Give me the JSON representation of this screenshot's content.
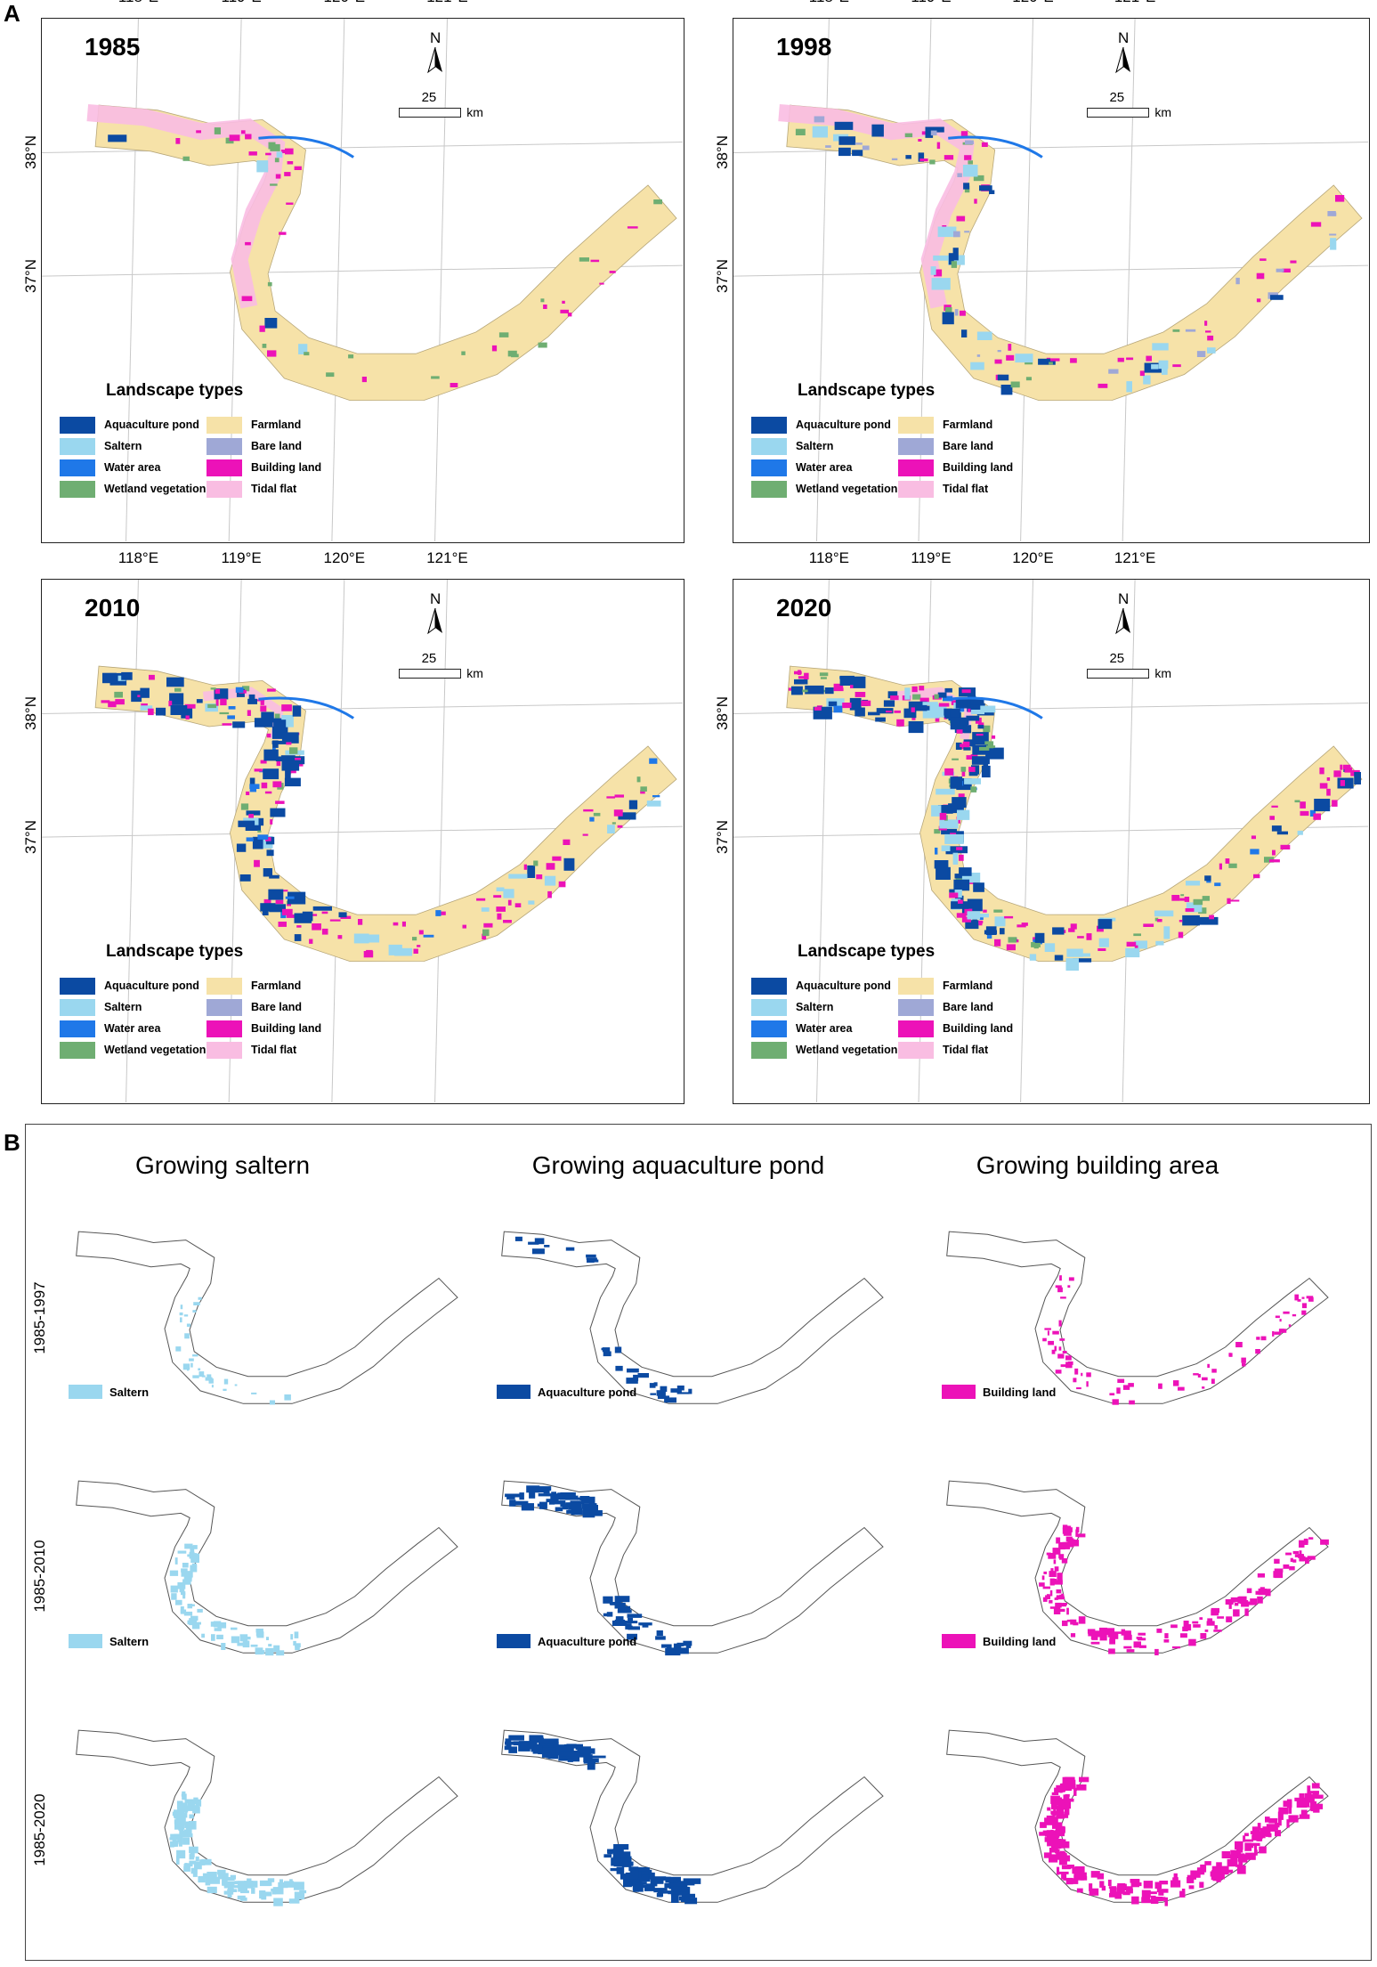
{
  "panel_a_label": "A",
  "panel_b_label": "B",
  "colors": {
    "aquaculture_pond": "#0b4aa2",
    "saltern": "#9ad7ef",
    "water_area": "#1f78e8",
    "wetland_vegetation": "#6fae72",
    "farmland": "#f6e2a8",
    "bare_land": "#9fa8d6",
    "building_land": "#ec12b8",
    "tidal_flat": "#f9bde2"
  },
  "longitude_labels": [
    "118°E",
    "119°E",
    "120°E",
    "121°E"
  ],
  "latitude_labels": [
    "38°N",
    "37°N"
  ],
  "north_label": "N",
  "scale": {
    "value": "25",
    "unit": "km"
  },
  "legend": {
    "title": "Landscape types",
    "items": [
      {
        "label": "Aquaculture pond",
        "color": "#0b4aa2"
      },
      {
        "label": "Saltern",
        "color": "#9ad7ef"
      },
      {
        "label": "Water area",
        "color": "#1f78e8"
      },
      {
        "label": "Wetland vegetation",
        "color": "#6fae72"
      },
      {
        "label": "Farmland",
        "color": "#f6e2a8"
      },
      {
        "label": "Bare land",
        "color": "#9fa8d6"
      },
      {
        "label": "Building land",
        "color": "#ec12b8"
      },
      {
        "label": "Tidal flat",
        "color": "#f9bde2"
      }
    ]
  },
  "maps": [
    {
      "year": "1985"
    },
    {
      "year": "1998"
    },
    {
      "year": "2010"
    },
    {
      "year": "2020"
    }
  ],
  "panel_b": {
    "columns": [
      "Growing saltern",
      "Growing aquaculture pond",
      "Growing building area"
    ],
    "rows": [
      "1985-1997",
      "1985-2010",
      "1985-2020"
    ],
    "legend_labels": [
      "Saltern",
      "Aquaculture pond",
      "Building land"
    ]
  }
}
